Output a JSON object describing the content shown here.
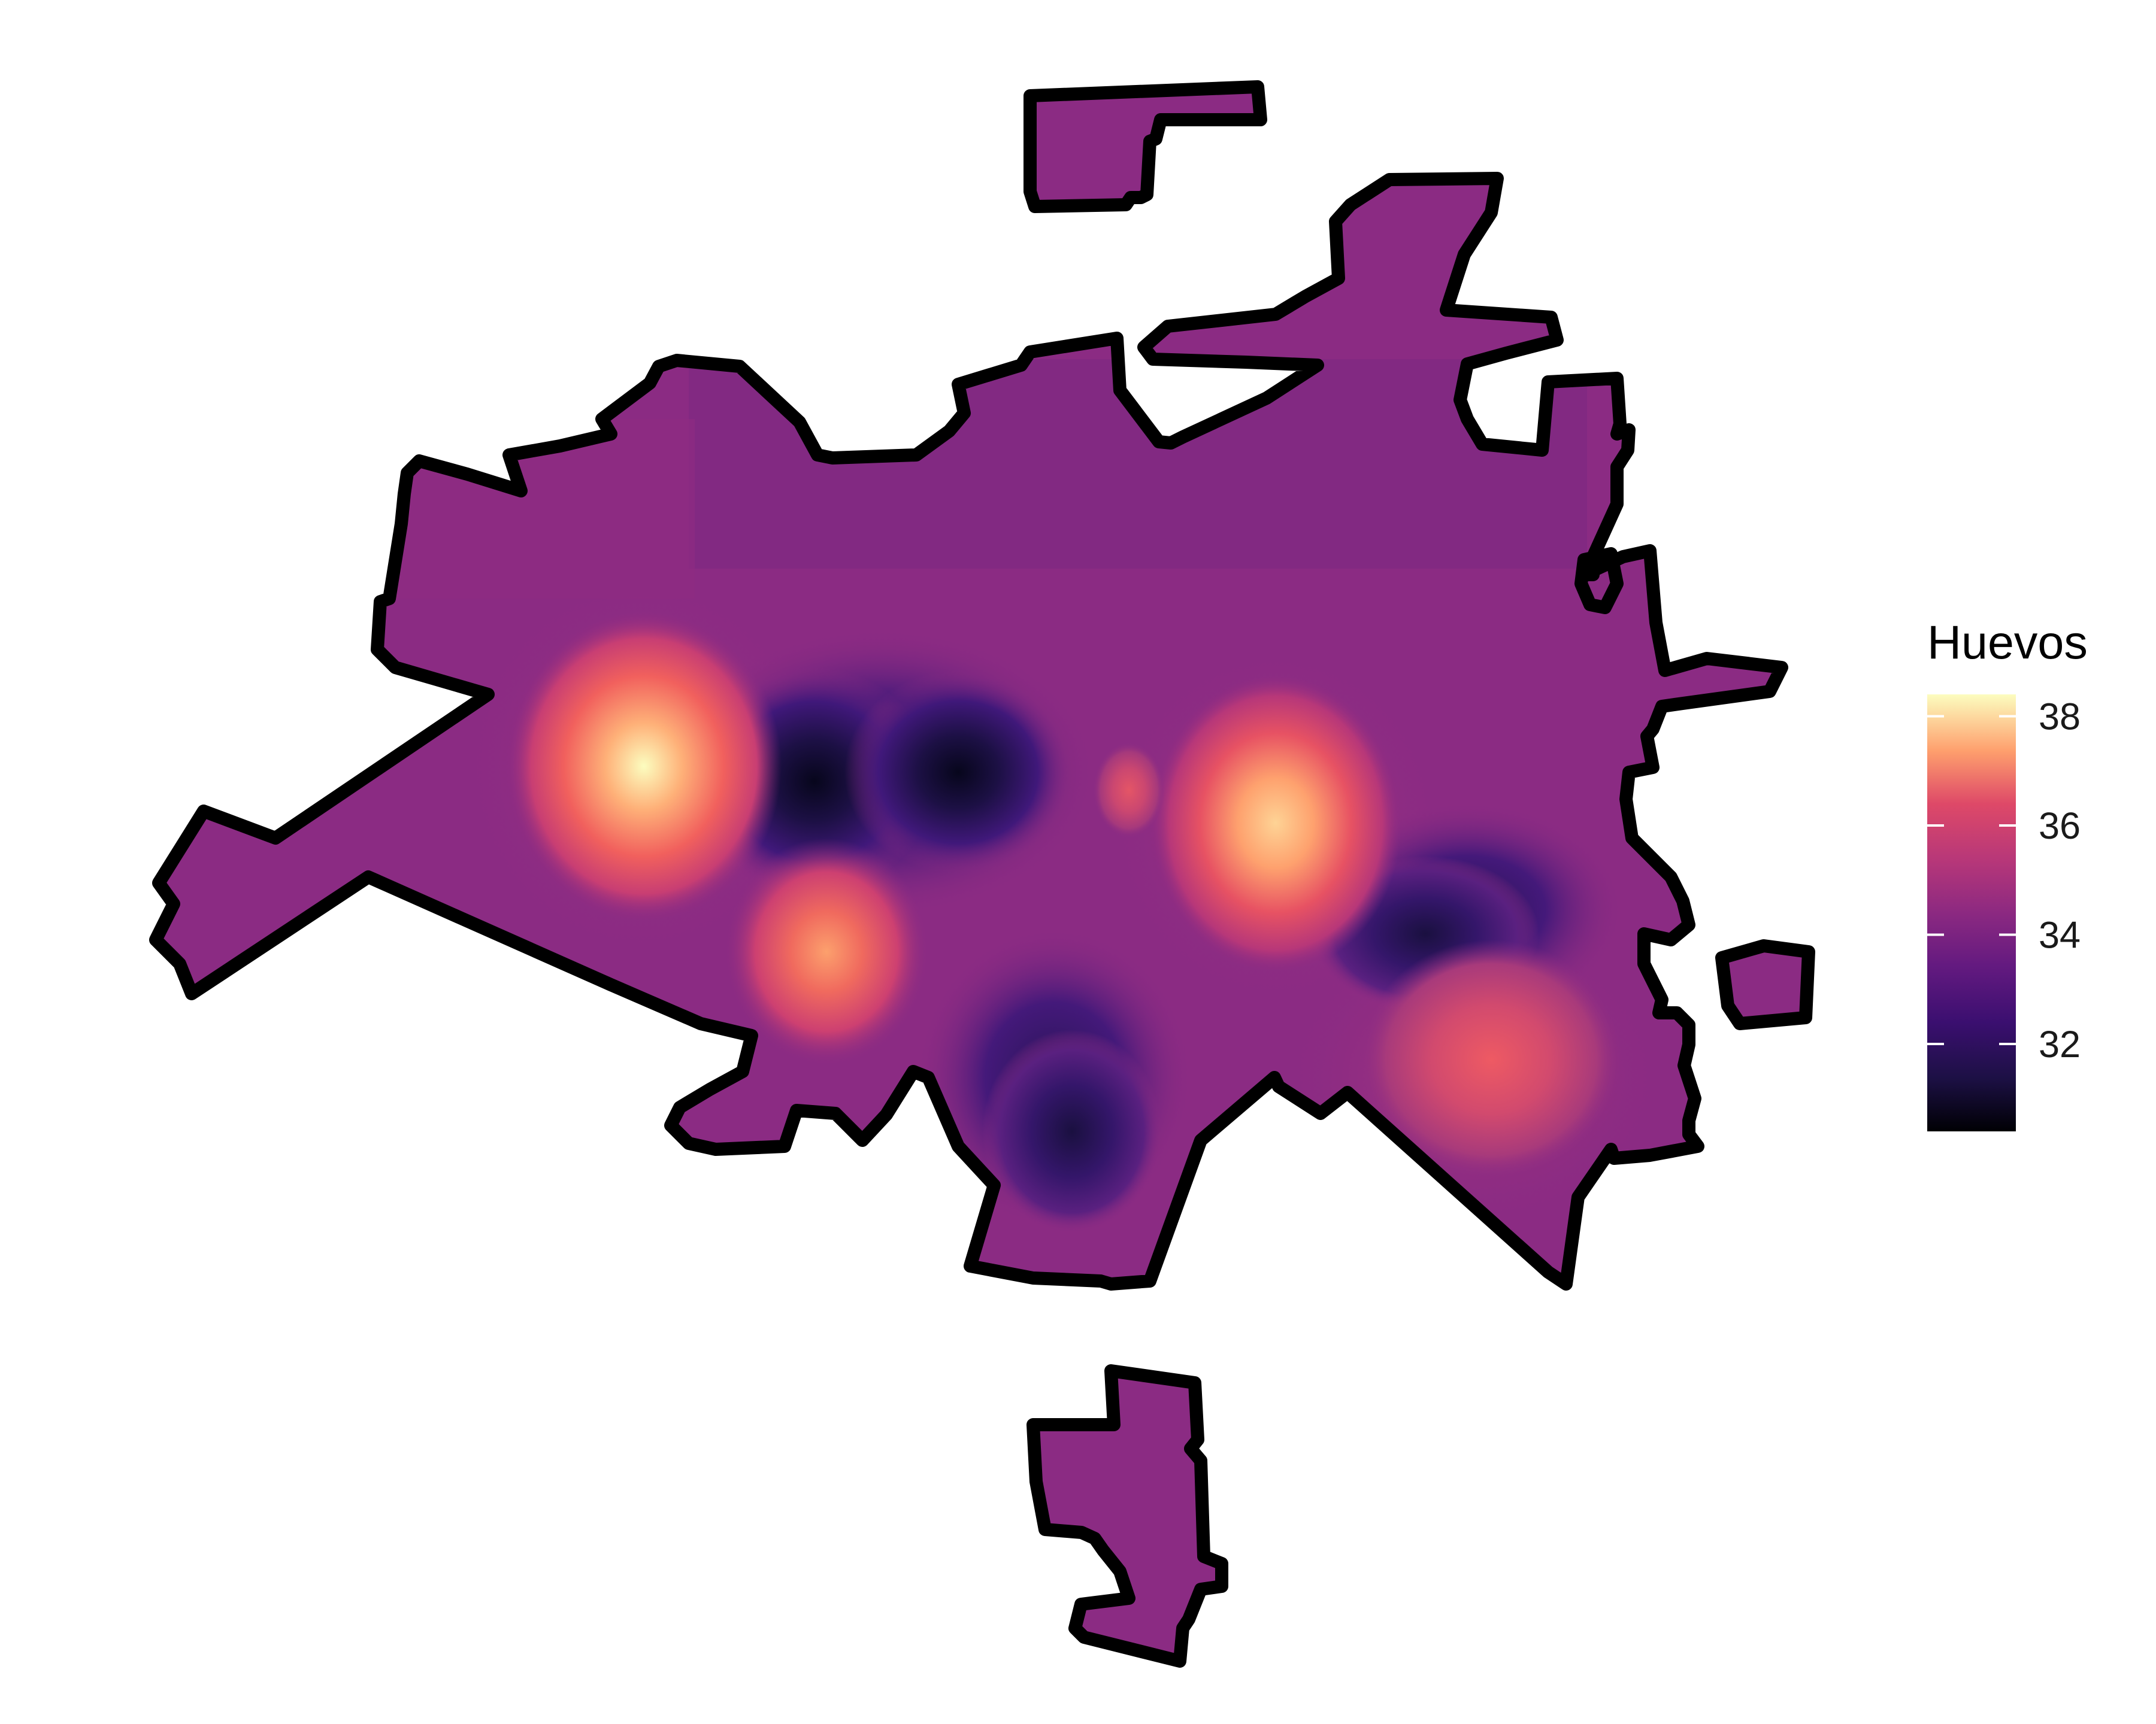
{
  "chart_data": {
    "type": "heatmap",
    "title": "",
    "xlabel": "",
    "ylabel": "",
    "colormap": "magma",
    "value_range": [
      30.4,
      38.4
    ],
    "legend": {
      "title": "Huevos",
      "ticks": [
        38,
        36,
        34,
        32
      ],
      "placement": "right"
    },
    "hotspots": [
      {
        "label": "west peak",
        "value": 38.2
      },
      {
        "label": "south-west centre peak",
        "value": 36.7
      },
      {
        "label": "east-centre peak",
        "value": 37.6
      },
      {
        "label": "south-east peak",
        "value": 35.6
      },
      {
        "label": "central low",
        "value": 30.6
      },
      {
        "label": "south-central low",
        "value": 31.0
      },
      {
        "label": "east low",
        "value": 31.5
      }
    ]
  },
  "colors": {
    "background": "#ffffff",
    "boundary": "#000000",
    "base_fill": "#8b2b83"
  }
}
